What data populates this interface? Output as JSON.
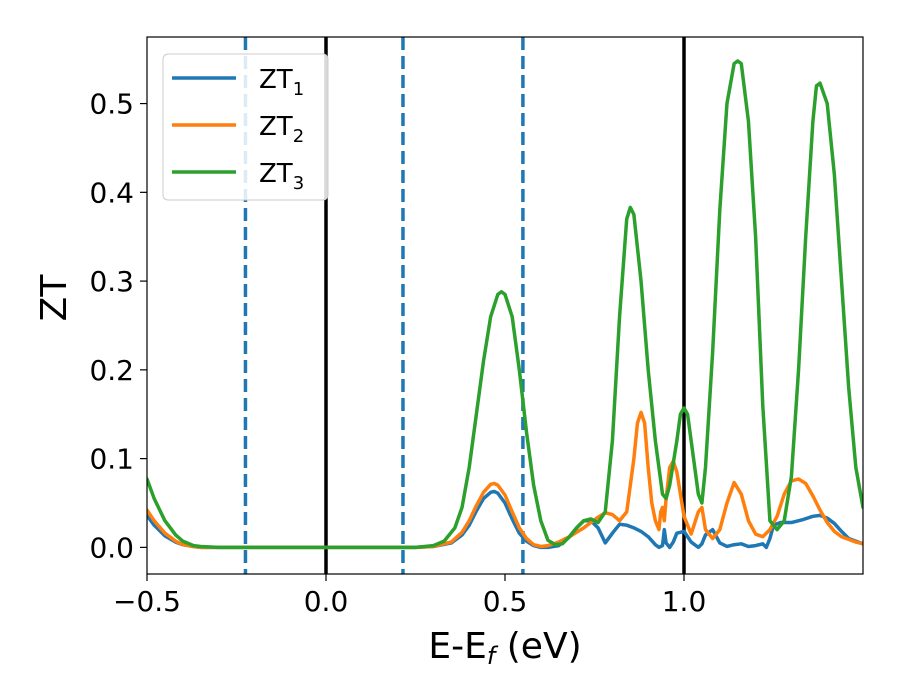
{
  "chart_data": {
    "type": "line",
    "xlabel": {
      "main": "E-E",
      "sub": "f",
      "unit": " (eV)"
    },
    "ylabel": "ZT",
    "xlim": [
      -0.5,
      1.5
    ],
    "ylim": [
      -0.03,
      0.575
    ],
    "xticks": [
      -0.5,
      0.0,
      0.5,
      1.0
    ],
    "xtick_labels": [
      "−0.5",
      "0.0",
      "0.5",
      "1.0"
    ],
    "yticks": [
      0.0,
      0.1,
      0.2,
      0.3,
      0.4,
      0.5
    ],
    "ytick_labels": [
      "0.0",
      "0.1",
      "0.2",
      "0.3",
      "0.4",
      "0.5"
    ],
    "grid": false,
    "legend_position": "top-left",
    "vlines_solid": [
      0.0,
      1.0
    ],
    "vlines_dashed": [
      -0.225,
      0.215,
      0.55
    ],
    "vline_solid_color": "#000000",
    "vline_dashed_color": "#1f77b4",
    "series": [
      {
        "name": "ZT",
        "sub": "1",
        "color": "#1f77b4",
        "x": [
          -0.5,
          -0.48,
          -0.45,
          -0.42,
          -0.4,
          -0.37,
          -0.35,
          -0.3,
          -0.25,
          -0.2,
          -0.1,
          0,
          0.1,
          0.2,
          0.25,
          0.3,
          0.35,
          0.38,
          0.4,
          0.42,
          0.44,
          0.46,
          0.47,
          0.48,
          0.5,
          0.52,
          0.54,
          0.56,
          0.58,
          0.6,
          0.62,
          0.65,
          0.68,
          0.7,
          0.72,
          0.74,
          0.76,
          0.78,
          0.8,
          0.82,
          0.84,
          0.86,
          0.88,
          0.9,
          0.92,
          0.93,
          0.94,
          0.945,
          0.95,
          0.96,
          0.97,
          0.98,
          1.0,
          1.02,
          1.04,
          1.05,
          1.06,
          1.08,
          1.1,
          1.12,
          1.14,
          1.16,
          1.18,
          1.2,
          1.22,
          1.23,
          1.24,
          1.25,
          1.27,
          1.3,
          1.33,
          1.36,
          1.38,
          1.4,
          1.42,
          1.44,
          1.46,
          1.5
        ],
        "y": [
          0.036,
          0.025,
          0.013,
          0.006,
          0.003,
          0.001,
          0.0,
          0.0,
          0.0,
          0.0,
          0.0,
          0.0,
          0.0,
          0.0,
          0.0,
          0.001,
          0.005,
          0.014,
          0.025,
          0.041,
          0.055,
          0.062,
          0.063,
          0.061,
          0.05,
          0.032,
          0.016,
          0.007,
          0.002,
          0.0,
          0.0,
          0.002,
          0.012,
          0.022,
          0.03,
          0.03,
          0.022,
          0.005,
          0.016,
          0.026,
          0.025,
          0.022,
          0.018,
          0.012,
          0.003,
          0.0,
          0.002,
          0.02,
          0.005,
          0.0,
          0.006,
          0.016,
          0.018,
          0.006,
          0.0,
          0.004,
          0.014,
          0.02,
          0.005,
          0.001,
          0.003,
          0.004,
          0.001,
          0.002,
          0.004,
          0.0,
          0.01,
          0.025,
          0.028,
          0.028,
          0.031,
          0.035,
          0.036,
          0.033,
          0.027,
          0.018,
          0.01,
          0.004
        ]
      },
      {
        "name": "ZT",
        "sub": "2",
        "color": "#ff7f0e",
        "x": [
          -0.5,
          -0.48,
          -0.45,
          -0.42,
          -0.4,
          -0.37,
          -0.35,
          -0.3,
          -0.25,
          -0.2,
          -0.1,
          0,
          0.1,
          0.2,
          0.25,
          0.3,
          0.35,
          0.38,
          0.4,
          0.42,
          0.44,
          0.46,
          0.47,
          0.48,
          0.5,
          0.52,
          0.54,
          0.56,
          0.58,
          0.6,
          0.62,
          0.65,
          0.68,
          0.7,
          0.72,
          0.74,
          0.76,
          0.78,
          0.8,
          0.82,
          0.84,
          0.86,
          0.87,
          0.88,
          0.89,
          0.9,
          0.91,
          0.92,
          0.93,
          0.935,
          0.94,
          0.945,
          0.95,
          0.96,
          0.97,
          0.98,
          0.99,
          1.0,
          1.02,
          1.04,
          1.05,
          1.06,
          1.08,
          1.1,
          1.12,
          1.14,
          1.16,
          1.18,
          1.2,
          1.22,
          1.24,
          1.26,
          1.28,
          1.3,
          1.32,
          1.34,
          1.36,
          1.38,
          1.4,
          1.42,
          1.44,
          1.46,
          1.48,
          1.5
        ],
        "y": [
          0.042,
          0.03,
          0.016,
          0.007,
          0.003,
          0.001,
          0.0,
          0.0,
          0.0,
          0.0,
          0.0,
          0.0,
          0.0,
          0.0,
          0.0,
          0.001,
          0.006,
          0.017,
          0.03,
          0.047,
          0.062,
          0.071,
          0.072,
          0.07,
          0.059,
          0.04,
          0.022,
          0.01,
          0.003,
          0.001,
          0.002,
          0.006,
          0.012,
          0.017,
          0.022,
          0.028,
          0.034,
          0.039,
          0.037,
          0.03,
          0.04,
          0.1,
          0.14,
          0.152,
          0.14,
          0.09,
          0.05,
          0.03,
          0.02,
          0.04,
          0.045,
          0.03,
          0.055,
          0.09,
          0.097,
          0.085,
          0.06,
          0.035,
          0.015,
          0.04,
          0.045,
          0.02,
          0.01,
          0.02,
          0.05,
          0.073,
          0.06,
          0.03,
          0.015,
          0.012,
          0.02,
          0.035,
          0.06,
          0.075,
          0.077,
          0.072,
          0.058,
          0.042,
          0.028,
          0.018,
          0.012,
          0.009,
          0.006,
          0.004
        ]
      },
      {
        "name": "ZT",
        "sub": "3",
        "color": "#2ca02c",
        "x": [
          -0.5,
          -0.48,
          -0.45,
          -0.42,
          -0.4,
          -0.37,
          -0.35,
          -0.3,
          -0.25,
          -0.2,
          -0.1,
          0,
          0.1,
          0.2,
          0.25,
          0.3,
          0.33,
          0.36,
          0.38,
          0.4,
          0.42,
          0.44,
          0.46,
          0.48,
          0.49,
          0.5,
          0.52,
          0.54,
          0.56,
          0.58,
          0.6,
          0.62,
          0.64,
          0.66,
          0.68,
          0.7,
          0.72,
          0.74,
          0.76,
          0.78,
          0.8,
          0.82,
          0.84,
          0.85,
          0.86,
          0.88,
          0.9,
          0.92,
          0.94,
          0.95,
          0.96,
          0.98,
          0.99,
          1.0,
          1.01,
          1.02,
          1.04,
          1.05,
          1.06,
          1.08,
          1.1,
          1.12,
          1.14,
          1.15,
          1.16,
          1.18,
          1.2,
          1.22,
          1.24,
          1.26,
          1.28,
          1.3,
          1.32,
          1.34,
          1.36,
          1.37,
          1.38,
          1.4,
          1.42,
          1.44,
          1.46,
          1.48,
          1.5
        ],
        "y": [
          0.077,
          0.055,
          0.03,
          0.014,
          0.007,
          0.002,
          0.001,
          0.0,
          0.0,
          0.0,
          0.0,
          0.0,
          0.0,
          0.0,
          0.0,
          0.002,
          0.007,
          0.022,
          0.045,
          0.09,
          0.15,
          0.21,
          0.26,
          0.285,
          0.288,
          0.285,
          0.26,
          0.2,
          0.13,
          0.07,
          0.03,
          0.008,
          0.003,
          0.004,
          0.012,
          0.022,
          0.03,
          0.032,
          0.028,
          0.04,
          0.12,
          0.26,
          0.37,
          0.383,
          0.375,
          0.3,
          0.2,
          0.12,
          0.06,
          0.055,
          0.07,
          0.12,
          0.15,
          0.157,
          0.15,
          0.12,
          0.06,
          0.05,
          0.09,
          0.22,
          0.38,
          0.5,
          0.545,
          0.548,
          0.545,
          0.48,
          0.35,
          0.16,
          0.03,
          0.02,
          0.03,
          0.08,
          0.2,
          0.35,
          0.48,
          0.52,
          0.523,
          0.5,
          0.42,
          0.3,
          0.18,
          0.09,
          0.045
        ]
      }
    ]
  }
}
